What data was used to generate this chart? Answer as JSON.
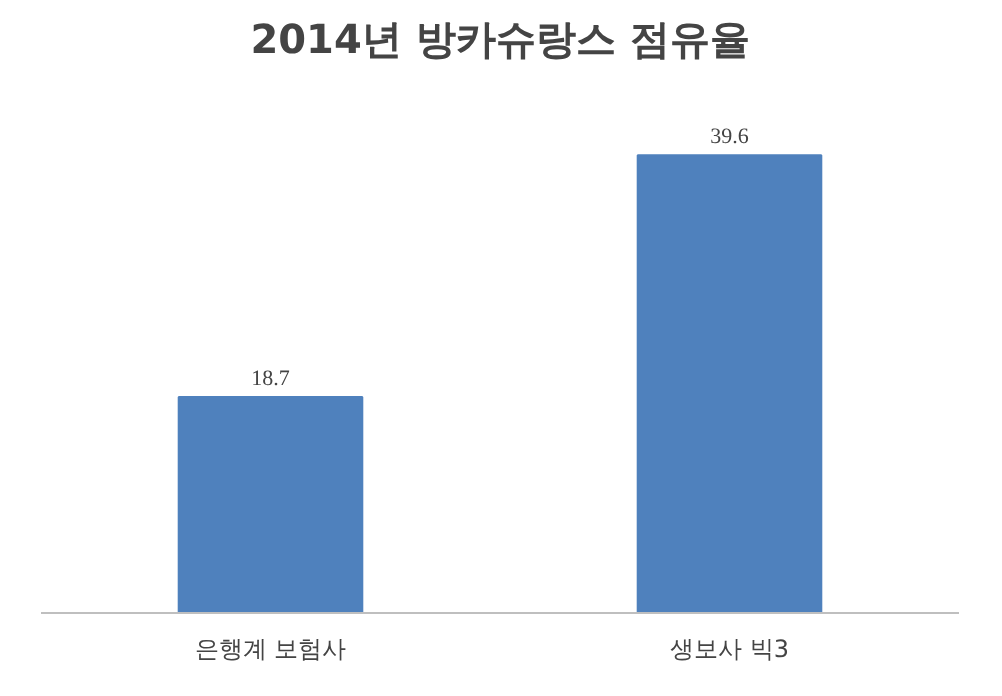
{
  "chart_data": {
    "type": "bar",
    "title": "2014년 방카슈랑스 점유율",
    "categories": [
      "은행계 보험사",
      "생보사 빅3"
    ],
    "values": [
      18.7,
      39.6
    ],
    "color": "#4f81bd",
    "data_labels": true,
    "grid": false
  }
}
